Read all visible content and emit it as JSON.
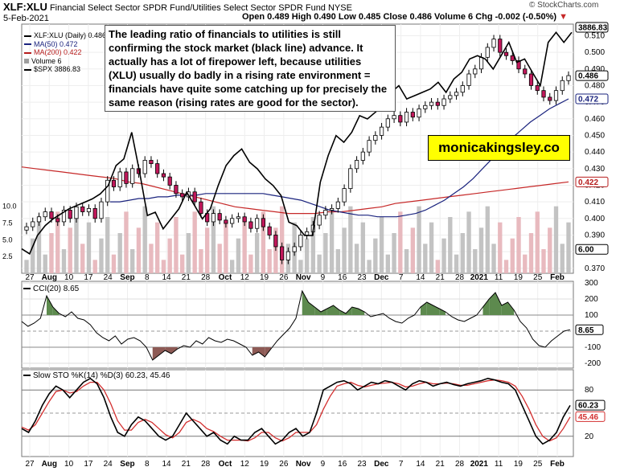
{
  "header": {
    "symbol": "XLF:XLU",
    "description": "Financial Select Sector SPDR Fund/Utilities Select Sector SPDR Fund NYSE",
    "date": "5-Feb-2021",
    "ohlc": "Open 0.489  High 0.490  Low 0.485  Close 0.486  Volume 6  Chg -0.002 (-0.50%)",
    "chg_icon": "down-triangle-icon",
    "copyright": "© StockCharts.com"
  },
  "legend": {
    "items": [
      {
        "label": "XLF:XLU (Daily) 0.486",
        "color": "#000000"
      },
      {
        "label": "MA(50) 0.472",
        "color": "#1a237e"
      },
      {
        "label": "MA(200) 0.422",
        "color": "#b71c1c"
      },
      {
        "label": "Volume 6",
        "color": "#9e9e9e"
      },
      {
        "label": "$SPX 3886.83",
        "color": "#000000"
      }
    ]
  },
  "annotation": "The leading ratio of financials to utilities is still confirming the stock market (black line) advance. It actually has a lot of firepower left, because utilities (XLU) usually do badly in a rising rate environment = financials have quite some catching up for precisely the same reason (rising rates are good for the sector).",
  "brand": "monicakingsley.co",
  "colors": {
    "up": "#ffffff",
    "down": "#c2185b",
    "ma50": "#1a237e",
    "ma200": "#c62828",
    "cci_fill": "#5d8a4e",
    "cci_neg": "#8d5a55",
    "vol": "#bdbdbd",
    "vol_red": "#e6b3b8"
  },
  "x_labels": [
    "27",
    "Aug",
    "10",
    "17",
    "24",
    "Sep",
    "8",
    "14",
    "21",
    "28",
    "Oct",
    "12",
    "19",
    "26",
    "Nov",
    "9",
    "16",
    "23",
    "Dec",
    "7",
    "14",
    "21",
    "28",
    "2021",
    "11",
    "19",
    "25",
    "Feb"
  ],
  "chart_data": [
    {
      "type": "line",
      "title": "XLF:XLU (Daily)",
      "y_right_ticks": [
        "0.510",
        "0.500",
        "0.490",
        "0.480",
        "0.470",
        "0.460",
        "0.450",
        "0.440",
        "0.430",
        "0.420",
        "0.410",
        "0.400",
        "0.390",
        "0.380",
        "0.370"
      ],
      "y_left_ticks": [
        "10.0",
        "7.5",
        "5.0",
        "2.5"
      ],
      "ylim": [
        0.367,
        0.517
      ],
      "right_badges": [
        {
          "label": "3886.83",
          "value": 0.5117,
          "bg": "#ffffff",
          "fg": "#000000"
        },
        {
          "label": "0.486",
          "value": 0.486,
          "bg": "#ffffff",
          "fg": "#000000"
        },
        {
          "label": "0.472",
          "value": 0.472,
          "bg": "#ffffff",
          "fg": "#1a237e"
        },
        {
          "label": "0.422",
          "value": 0.422,
          "bg": "#ffffff",
          "fg": "#b71c1c"
        },
        {
          "label": "6.00",
          "value": 0.3814,
          "bg": "#ffffff",
          "fg": "#000000"
        }
      ],
      "series": [
        {
          "name": "XLF:XLU",
          "values": [
            0.395,
            0.398,
            0.401,
            0.404,
            0.4,
            0.398,
            0.405,
            0.4,
            0.407,
            0.404,
            0.406,
            0.4,
            0.41,
            0.423,
            0.419,
            0.428,
            0.421,
            0.43,
            0.427,
            0.435,
            0.433,
            0.427,
            0.425,
            0.42,
            0.415,
            0.413,
            0.416,
            0.41,
            0.403,
            0.398,
            0.403,
            0.399,
            0.397,
            0.4,
            0.401,
            0.398,
            0.394,
            0.4,
            0.395,
            0.39,
            0.383,
            0.375,
            0.38,
            0.383,
            0.39,
            0.392,
            0.396,
            0.402,
            0.405,
            0.406,
            0.41,
            0.418,
            0.43,
            0.435,
            0.44,
            0.447,
            0.45,
            0.455,
            0.46,
            0.462,
            0.458,
            0.464,
            0.461,
            0.466,
            0.468,
            0.47,
            0.468,
            0.472,
            0.474,
            0.476,
            0.48,
            0.487,
            0.49,
            0.497,
            0.503,
            0.508,
            0.5,
            0.498,
            0.495,
            0.49,
            0.487,
            0.48,
            0.477,
            0.473,
            0.471,
            0.477,
            0.483,
            0.486
          ]
        },
        {
          "name": "MA(50)",
          "values": [
            0.41,
            0.41,
            0.411,
            0.412,
            0.412,
            0.413,
            0.413,
            0.414,
            0.414,
            0.414,
            0.415,
            0.415,
            0.415,
            0.415,
            0.415,
            0.415,
            0.415,
            0.414,
            0.413,
            0.412,
            0.411,
            0.409,
            0.407,
            0.405,
            0.404,
            0.403,
            0.402,
            0.402,
            0.401,
            0.401,
            0.401,
            0.402,
            0.403,
            0.405,
            0.408,
            0.411,
            0.415,
            0.419,
            0.424,
            0.43,
            0.436,
            0.442,
            0.448,
            0.453,
            0.458,
            0.462,
            0.466,
            0.469,
            0.472
          ]
        },
        {
          "name": "MA(200)",
          "values": [
            0.431,
            0.43,
            0.429,
            0.428,
            0.427,
            0.426,
            0.425,
            0.424,
            0.422,
            0.421,
            0.419,
            0.417,
            0.415,
            0.413,
            0.411,
            0.409,
            0.407,
            0.406,
            0.405,
            0.404,
            0.403,
            0.403,
            0.403,
            0.404,
            0.404,
            0.405,
            0.406,
            0.407,
            0.409,
            0.41,
            0.411,
            0.412,
            0.413,
            0.414,
            0.415,
            0.416,
            0.417,
            0.418,
            0.419,
            0.42,
            0.421,
            0.422
          ]
        },
        {
          "name": "$SPX",
          "values": [
            3230,
            3215,
            3270,
            3300,
            3320,
            3335,
            3350,
            3360,
            3370,
            3380,
            3395,
            3420,
            3480,
            3500,
            3580,
            3460,
            3330,
            3340,
            3290,
            3320,
            3350,
            3400,
            3360,
            3320,
            3350,
            3420,
            3480,
            3510,
            3530,
            3490,
            3470,
            3440,
            3420,
            3390,
            3310,
            3300,
            3270,
            3270,
            3430,
            3510,
            3570,
            3550,
            3580,
            3630,
            3620,
            3640,
            3660,
            3700,
            3720,
            3680,
            3690,
            3700,
            3710,
            3730,
            3700,
            3740,
            3760,
            3800,
            3810,
            3800,
            3770,
            3810,
            3850,
            3790,
            3800,
            3760,
            3720,
            3850,
            3880,
            3850,
            3880
          ]
        }
      ]
    },
    {
      "type": "area",
      "title": "CCI(20) 8.65",
      "y_ticks": [
        "300",
        "200",
        "100",
        "-100",
        "-200"
      ],
      "ylim": [
        -230,
        310
      ],
      "badge": "8.65",
      "values": [
        60,
        30,
        50,
        80,
        220,
        150,
        110,
        90,
        120,
        80,
        70,
        40,
        -10,
        -40,
        -60,
        -30,
        -80,
        -50,
        -40,
        -60,
        -100,
        -180,
        -150,
        -120,
        -140,
        -110,
        -90,
        -100,
        -60,
        -80,
        -40,
        -60,
        -70,
        -50,
        -60,
        -80,
        -100,
        -150,
        -130,
        -160,
        -110,
        -60,
        -20,
        20,
        80,
        250,
        180,
        150,
        120,
        140,
        160,
        130,
        110,
        150,
        140,
        120,
        90,
        100,
        110,
        80,
        60,
        50,
        80,
        100,
        150,
        180,
        160,
        140,
        120,
        90,
        70,
        60,
        80,
        100,
        150,
        200,
        240,
        160,
        180,
        130,
        60,
        20,
        -50,
        -90,
        -100,
        -60,
        -30,
        0,
        9
      ]
    },
    {
      "type": "line",
      "title": "Slow STO %K(14) %D(3) 60.23, 45.46",
      "y_ticks": [
        "80",
        "20"
      ],
      "ylim": [
        0,
        100
      ],
      "badges": [
        "60.23",
        "45.46"
      ],
      "series": [
        {
          "name": "%K",
          "values": [
            30,
            25,
            40,
            60,
            75,
            85,
            80,
            70,
            80,
            90,
            95,
            88,
            70,
            45,
            25,
            20,
            35,
            45,
            40,
            30,
            20,
            15,
            20,
            35,
            50,
            40,
            30,
            20,
            25,
            15,
            10,
            20,
            15,
            15,
            25,
            30,
            20,
            10,
            15,
            25,
            30,
            20,
            25,
            50,
            80,
            85,
            90,
            92,
            88,
            80,
            85,
            90,
            88,
            92,
            90,
            85,
            80,
            88,
            92,
            90,
            85,
            88,
            90,
            87,
            85,
            88,
            90,
            92,
            95,
            93,
            90,
            88,
            80,
            60,
            40,
            20,
            10,
            15,
            25,
            45,
            60
          ]
        },
        {
          "name": "%D",
          "values": [
            32,
            28,
            35,
            50,
            65,
            78,
            80,
            76,
            78,
            85,
            90,
            90,
            80,
            62,
            40,
            28,
            28,
            38,
            42,
            38,
            30,
            22,
            18,
            25,
            38,
            42,
            38,
            30,
            26,
            20,
            15,
            15,
            15,
            14,
            18,
            25,
            25,
            18,
            14,
            18,
            25,
            25,
            25,
            35,
            55,
            72,
            85,
            88,
            90,
            86,
            84,
            86,
            88,
            89,
            90,
            88,
            84,
            85,
            88,
            90,
            88,
            88,
            89,
            88,
            86,
            86,
            88,
            90,
            92,
            93,
            92,
            90,
            85,
            72,
            55,
            35,
            20,
            14,
            18,
            30,
            45
          ]
        }
      ]
    }
  ]
}
